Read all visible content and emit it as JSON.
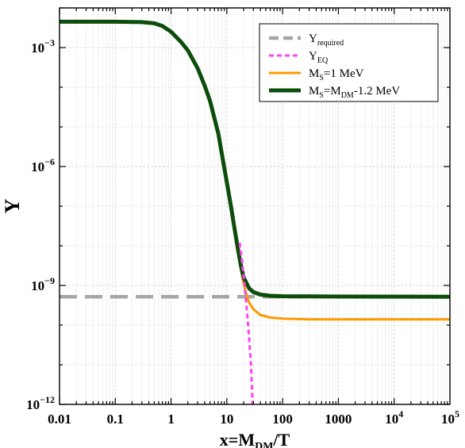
{
  "chart_data": {
    "type": "line",
    "title": "",
    "xlabel": {
      "base": "x=M",
      "sub": "DM",
      "tail": "/T"
    },
    "ylabel": "Y",
    "xscale": "log",
    "yscale": "log",
    "xlim": [
      0.01,
      100000
    ],
    "ylim": [
      1e-12,
      0.01
    ],
    "grid": true,
    "legend_position": "top-right",
    "x_ticks": [
      {
        "value": 0.01,
        "label": "0.01"
      },
      {
        "value": 0.1,
        "label": "0.1"
      },
      {
        "value": 1,
        "label": "1"
      },
      {
        "value": 10,
        "label": "10"
      },
      {
        "value": 100,
        "label": "100"
      },
      {
        "value": 1000,
        "label": "1000"
      },
      {
        "value": 10000,
        "base": "10",
        "exp": "4"
      },
      {
        "value": 100000,
        "base": "10",
        "exp": "5"
      }
    ],
    "y_ticks": [
      {
        "value": 1e-12,
        "base": "10",
        "exp": "−12"
      },
      {
        "value": 1e-09,
        "base": "10",
        "exp": "−9"
      },
      {
        "value": 1e-06,
        "base": "10",
        "exp": "−6"
      },
      {
        "value": 0.001,
        "base": "10",
        "exp": "−3"
      }
    ],
    "series": [
      {
        "name": {
          "base": "Y",
          "sub": "required",
          "tail": ""
        },
        "color": "#a6a6a6",
        "style": "dashed",
        "x": [
          0.01,
          100000
        ],
        "y": [
          5.2e-10,
          5.2e-10
        ]
      },
      {
        "name": {
          "base": "Y",
          "sub": "EQ",
          "tail": ""
        },
        "color": "#ff44ee",
        "style": "dotted",
        "x": [
          17,
          19,
          21,
          23,
          25,
          27,
          29
        ],
        "y": [
          1.2e-08,
          3.5e-09,
          9e-10,
          2.2e-10,
          5e-11,
          1.1e-11,
          1e-12
        ]
      },
      {
        "name": {
          "base": "M",
          "sub": "S",
          "tail": "=1 MeV"
        },
        "color": "#ff9900",
        "style": "solid",
        "x": [
          0.01,
          0.1,
          0.3,
          0.5,
          0.7,
          1,
          1.5,
          2,
          3,
          4,
          5,
          7,
          10,
          12,
          14,
          16,
          18,
          20,
          22,
          25,
          30,
          40,
          60,
          100,
          300,
          1000,
          100000
        ],
        "y": [
          0.0045,
          0.0045,
          0.0044,
          0.0041,
          0.0035,
          0.0025,
          0.0014,
          0.00085,
          0.0003,
          0.00011,
          4.5e-05,
          7e-06,
          4e-07,
          9e-08,
          2.3e-08,
          7e-09,
          2.5e-09,
          1.1e-09,
          6.5e-10,
          3.8e-10,
          2.5e-10,
          1.8e-10,
          1.55e-10,
          1.45e-10,
          1.4e-10,
          1.4e-10,
          1.4e-10
        ]
      },
      {
        "name": {
          "base": "M",
          "sub": "S",
          "tail": "=M",
          "sub2": "DM",
          "tail2": "-1.2 MeV"
        },
        "color": "#0c4d0c",
        "style": "solid",
        "x": [
          0.01,
          0.1,
          0.3,
          0.5,
          0.7,
          1,
          1.5,
          2,
          3,
          4,
          5,
          7,
          10,
          12,
          14,
          16,
          18,
          20,
          25,
          30,
          40,
          60,
          100,
          300,
          1000,
          100000
        ],
        "y": [
          0.0045,
          0.0045,
          0.0044,
          0.0041,
          0.0035,
          0.0025,
          0.0014,
          0.00085,
          0.0003,
          0.00011,
          4.5e-05,
          7e-06,
          4e-07,
          9e-08,
          2.3e-08,
          7.5e-09,
          3e-09,
          1.6e-09,
          8.5e-10,
          6.8e-10,
          5.9e-10,
          5.5e-10,
          5.35e-10,
          5.3e-10,
          5.25e-10,
          5.2e-10
        ]
      }
    ]
  }
}
